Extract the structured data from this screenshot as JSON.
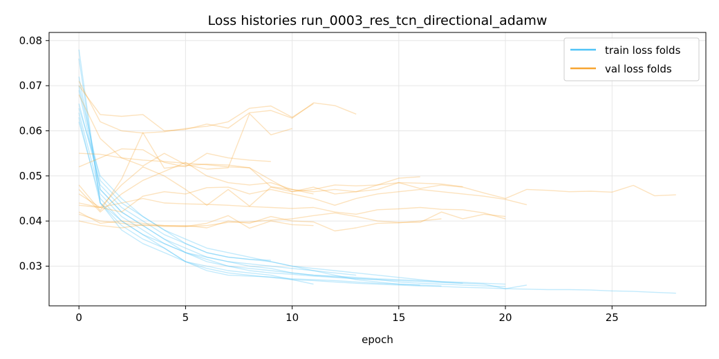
{
  "chart_data": {
    "type": "line",
    "title": "Loss histories run_0003_res_tcn_directional_adamw",
    "xlabel": "epoch",
    "ylabel": "",
    "xlim": [
      -1.4,
      29.4
    ],
    "ylim": [
      0.0212,
      0.0818
    ],
    "xticks": [
      0,
      5,
      10,
      15,
      20,
      25
    ],
    "yticks": [
      0.03,
      0.04,
      0.05,
      0.06,
      0.07,
      0.08
    ],
    "grid": true,
    "legend_position": "top-right",
    "legend": [
      {
        "label": "train loss folds",
        "color": "#4fc3f7"
      },
      {
        "label": "val loss folds",
        "color": "#f7a531"
      }
    ],
    "colors": {
      "train": "#4fc3f7",
      "val": "#f7a531"
    },
    "train_series": [
      [
        0.078,
        0.044,
        0.04,
        0.037,
        0.034,
        0.031,
        0.0295,
        0.0285,
        0.028,
        0.0275,
        0.027,
        0.0268,
        0.0265,
        0.0262,
        0.026,
        0.0258,
        0.0256,
        0.0255,
        0.0253,
        0.0252,
        0.025,
        0.0249,
        0.0248,
        0.0248,
        0.0247,
        0.0245,
        0.0244,
        0.0242,
        0.024
      ],
      [
        0.069,
        0.047,
        0.042,
        0.039,
        0.036,
        0.033,
        0.031,
        0.03,
        0.029,
        0.0285,
        0.0282,
        0.0278,
        0.0275,
        0.0272,
        0.027,
        0.0268,
        0.0266,
        0.0264,
        0.0262,
        0.026,
        0.025,
        0.0258
      ],
      [
        0.064,
        0.046,
        0.041,
        0.038,
        0.035,
        0.033,
        0.0315,
        0.03,
        0.0295,
        0.029,
        0.0285,
        0.028,
        0.0276,
        0.0273,
        0.027,
        0.0265,
        0.0262,
        0.026,
        0.0258,
        0.0256,
        0.0255
      ],
      [
        0.066,
        0.048,
        0.043,
        0.04,
        0.037,
        0.035,
        0.033,
        0.032,
        0.0315,
        0.031,
        0.03,
        0.0295,
        0.029,
        0.0285,
        0.028,
        0.0275,
        0.027,
        0.0265,
        0.0262
      ],
      [
        0.07,
        0.049,
        0.044,
        0.041,
        0.038,
        0.036,
        0.034,
        0.033,
        0.032,
        0.031,
        0.03,
        0.029,
        0.028,
        0.027,
        0.0265,
        0.026,
        0.0258
      ],
      [
        0.062,
        0.045,
        0.04,
        0.037,
        0.035,
        0.033,
        0.032,
        0.031,
        0.0305,
        0.03,
        0.0295,
        0.029,
        0.0285,
        0.028
      ],
      [
        0.065,
        0.05,
        0.045,
        0.041,
        0.038,
        0.035,
        0.033,
        0.032,
        0.0315,
        0.0313
      ],
      [
        0.072,
        0.047,
        0.042,
        0.039,
        0.036,
        0.034,
        0.032,
        0.031,
        0.03,
        0.0295,
        0.0285,
        0.028,
        0.0278,
        0.0275,
        0.0272,
        0.027,
        0.0268,
        0.0266,
        0.0264,
        0.0262,
        0.026
      ],
      [
        0.076,
        0.044,
        0.039,
        0.036,
        0.034,
        0.031,
        0.029,
        0.028,
        0.0278,
        0.0276,
        0.0272,
        0.027,
        0.0268,
        0.0265,
        0.0262,
        0.026,
        0.0258,
        0.0256
      ],
      [
        0.063,
        0.044,
        0.038,
        0.035,
        0.033,
        0.031,
        0.03,
        0.029,
        0.0285,
        0.028,
        0.027,
        0.026
      ]
    ],
    "val_series": [
      [
        0.071,
        0.062,
        0.06,
        0.0595,
        0.0598,
        0.0605,
        0.061,
        0.062,
        0.065,
        0.0655,
        0.063,
        0.066
      ],
      [
        0.07,
        0.0636,
        0.0632,
        0.0636,
        0.06,
        0.0603,
        0.0615,
        0.0606,
        0.064,
        0.0645,
        0.0628,
        0.0662,
        0.0656,
        0.0637
      ],
      [
        0.068,
        0.0583,
        0.054,
        0.0522,
        0.055,
        0.0525,
        0.0515,
        0.0518,
        0.0638,
        0.0591,
        0.0605
      ],
      [
        0.055,
        0.0548,
        0.054,
        0.0535,
        0.0532,
        0.0528,
        0.0525,
        0.052,
        0.0518,
        0.0476,
        0.047,
        0.046
      ],
      [
        0.052,
        0.054,
        0.056,
        0.0558,
        0.053,
        0.052,
        0.055,
        0.054,
        0.0535,
        0.0532
      ],
      [
        0.048,
        0.0423,
        0.0493,
        0.0596,
        0.0517,
        0.0523,
        0.0526,
        0.0524,
        0.0518,
        0.0491,
        0.0465,
        0.047,
        0.048,
        0.0478,
        0.048,
        0.0485,
        0.0484,
        0.0482,
        0.0476
      ],
      [
        0.047,
        0.042,
        0.046,
        0.049,
        0.051,
        0.053,
        0.05,
        0.0485,
        0.048,
        0.0485,
        0.047,
        0.0465,
        0.047,
        0.0465,
        0.047,
        0.0485,
        0.0472,
        0.048,
        0.0475,
        0.0462,
        0.045,
        0.047,
        0.0468,
        0.0465,
        0.0466,
        0.0464,
        0.0479,
        0.0456,
        0.0458
      ],
      [
        0.0435,
        0.043,
        0.048,
        0.052,
        0.05,
        0.047,
        0.0435,
        0.047,
        0.0433,
        0.0475,
        0.0465,
        0.0475,
        0.046,
        0.0465,
        0.048,
        0.0495,
        0.0498
      ],
      [
        0.044,
        0.043,
        0.042,
        0.0455,
        0.0465,
        0.046,
        0.0474,
        0.0475,
        0.046,
        0.047,
        0.046,
        0.045,
        0.0435,
        0.045,
        0.046,
        0.0465,
        0.047,
        0.0465,
        0.046,
        0.0455,
        0.0448,
        0.0436
      ],
      [
        0.046,
        0.043,
        0.044,
        0.045,
        0.044,
        0.0438,
        0.0437,
        0.0435,
        0.0432,
        0.043,
        0.0428,
        0.043,
        0.042,
        0.0415,
        0.0425,
        0.0427,
        0.043,
        0.0426,
        0.0425,
        0.0418,
        0.0405
      ],
      [
        0.0415,
        0.04,
        0.0395,
        0.039,
        0.039,
        0.039,
        0.0385,
        0.04,
        0.0395,
        0.041,
        0.04,
        0.0398,
        0.0378,
        0.0385,
        0.0395,
        0.0396,
        0.04,
        0.0405
      ],
      [
        0.04,
        0.039,
        0.0385,
        0.0392,
        0.0388,
        0.0388,
        0.0395,
        0.0412,
        0.0384,
        0.04,
        0.0392,
        0.039
      ],
      [
        0.042,
        0.0395,
        0.04,
        0.0395,
        0.039,
        0.0388,
        0.039,
        0.0397,
        0.0398,
        0.0402,
        0.0405,
        0.0412,
        0.0418,
        0.041,
        0.04,
        0.0397,
        0.0397,
        0.042,
        0.0405,
        0.0415,
        0.041
      ]
    ]
  }
}
